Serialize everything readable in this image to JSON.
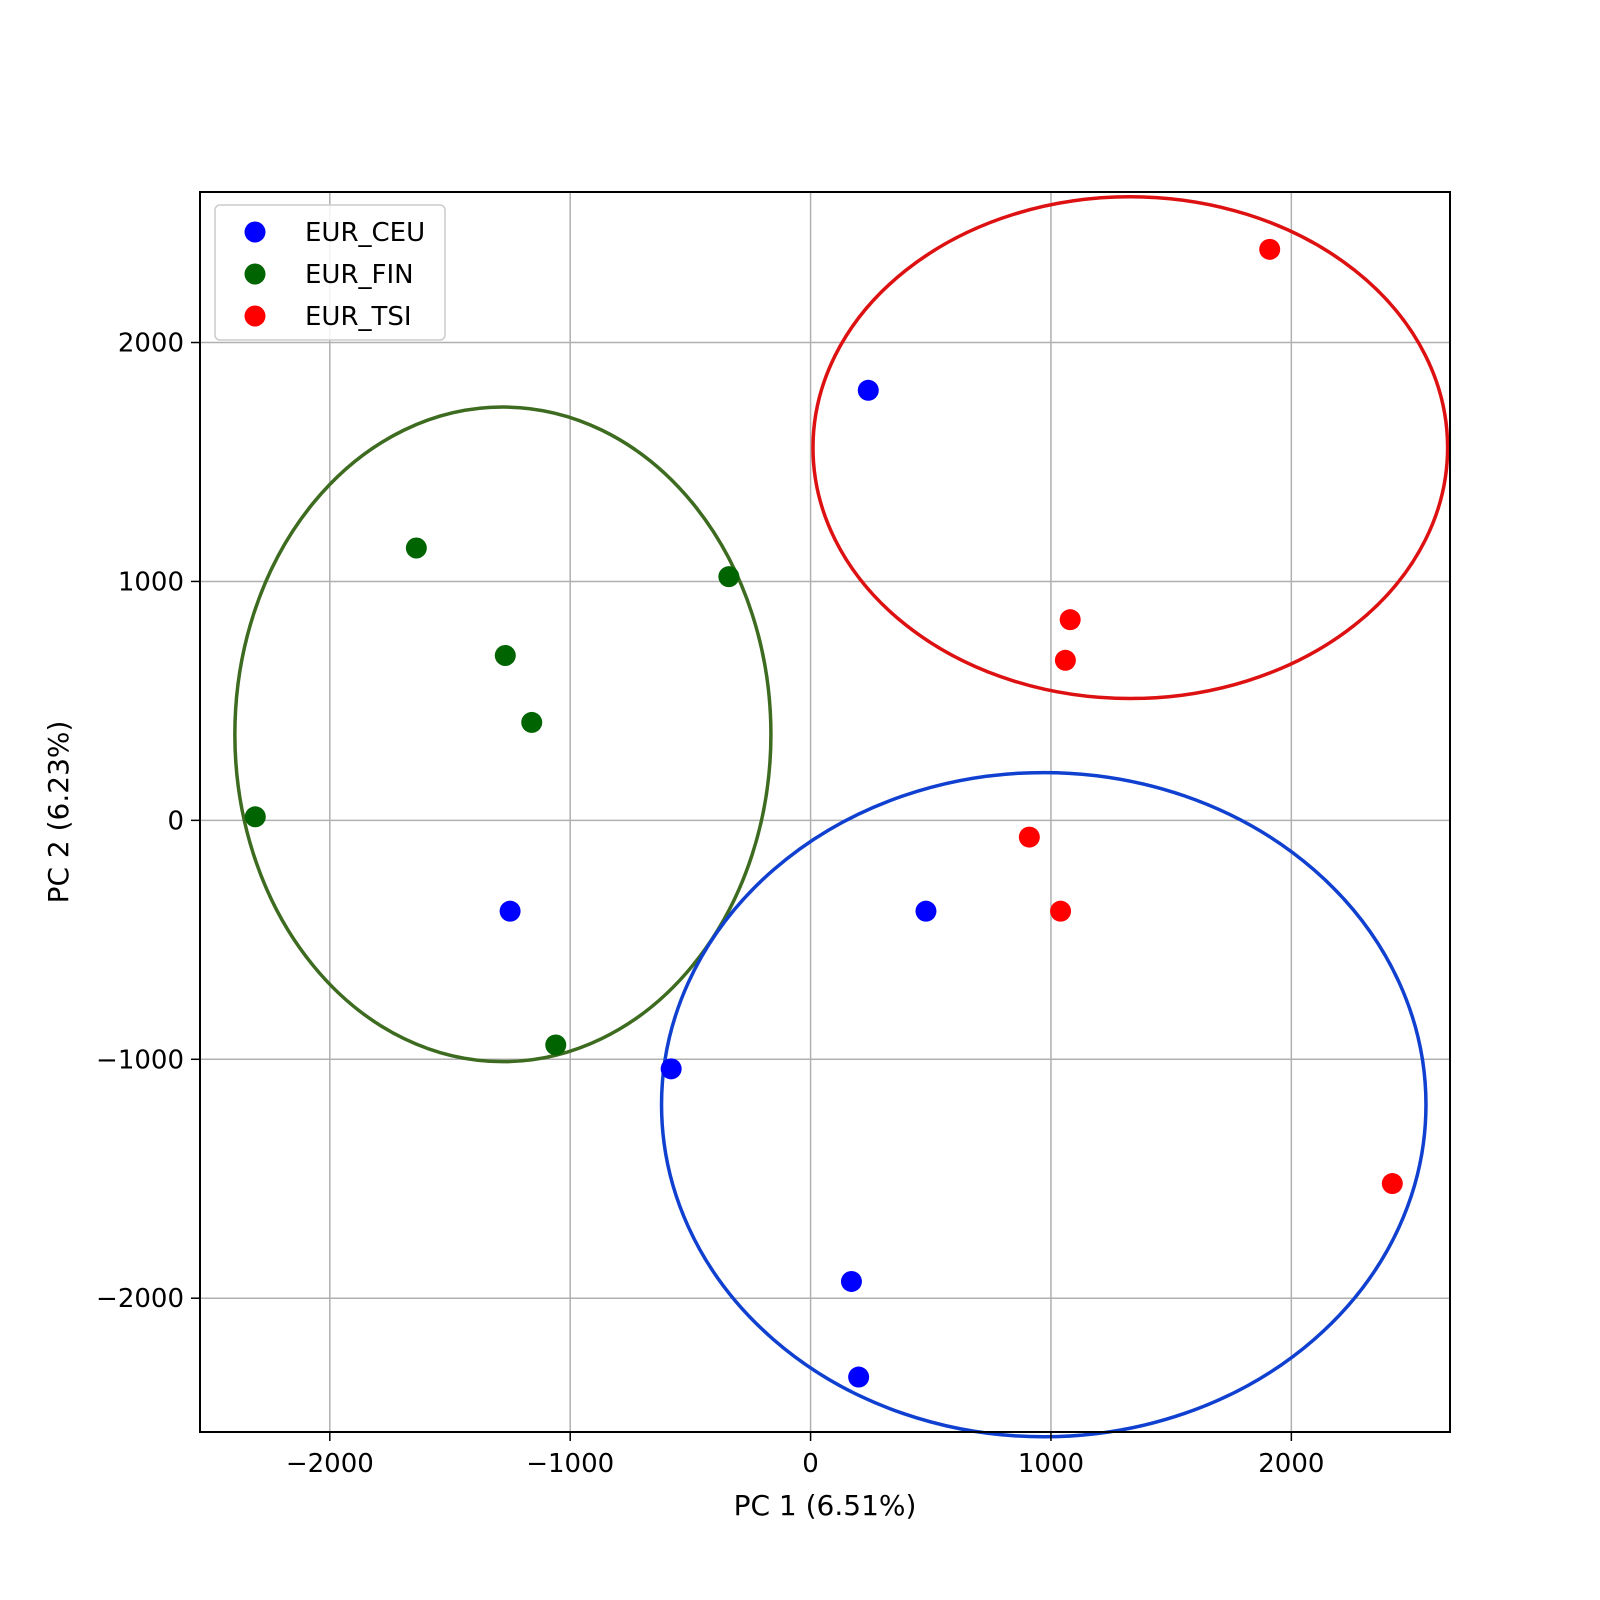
{
  "chart_data": {
    "type": "scatter",
    "title": "",
    "xlabel": "PC 1 (6.51%)",
    "ylabel": "PC 2 (6.23%)",
    "xlim": [
      -2540,
      2660
    ],
    "ylim": [
      -2560,
      2630
    ],
    "xticks": [
      -2000,
      -1000,
      0,
      1000,
      2000
    ],
    "yticks": [
      -2000,
      -1000,
      0,
      1000,
      2000
    ],
    "xtick_labels": [
      "−2000",
      "−1000",
      "0",
      "1000",
      "2000"
    ],
    "ytick_labels": [
      "−2000",
      "−1000",
      "0",
      "1000",
      "2000"
    ],
    "grid": true,
    "legend_position": "top-left",
    "series": [
      {
        "name": "EUR_CEU",
        "color": "#0000ff",
        "points": [
          {
            "x": 240,
            "y": 1800
          },
          {
            "x": -1250,
            "y": -380
          },
          {
            "x": 480,
            "y": -380
          },
          {
            "x": -580,
            "y": -1040
          },
          {
            "x": 170,
            "y": -1930
          },
          {
            "x": 200,
            "y": -2330
          }
        ]
      },
      {
        "name": "EUR_FIN",
        "color": "#006400",
        "points": [
          {
            "x": -1640,
            "y": 1140
          },
          {
            "x": -340,
            "y": 1020
          },
          {
            "x": -1270,
            "y": 690
          },
          {
            "x": -1160,
            "y": 410
          },
          {
            "x": -2310,
            "y": 15
          },
          {
            "x": -1060,
            "y": -940
          }
        ]
      },
      {
        "name": "EUR_TSI",
        "color": "#ff0000",
        "points": [
          {
            "x": 1910,
            "y": 2390
          },
          {
            "x": 1080,
            "y": 840
          },
          {
            "x": 1060,
            "y": 670
          },
          {
            "x": 910,
            "y": -70
          },
          {
            "x": 1040,
            "y": -380
          },
          {
            "x": 2420,
            "y": -1520
          }
        ]
      }
    ],
    "ellipses": [
      {
        "series": "EUR_FIN",
        "color": "#3d6b1f",
        "cx": -1280,
        "cy": 360,
        "rx": 1115,
        "ry": 1370
      },
      {
        "series": "EUR_TSI",
        "color": "#dd1111",
        "cx": 1330,
        "cy": 1560,
        "rx": 1320,
        "ry": 1050
      },
      {
        "series": "EUR_CEU",
        "color": "#1040d0",
        "cx": 970,
        "cy": -1190,
        "rx": 1590,
        "ry": 1390
      }
    ]
  }
}
